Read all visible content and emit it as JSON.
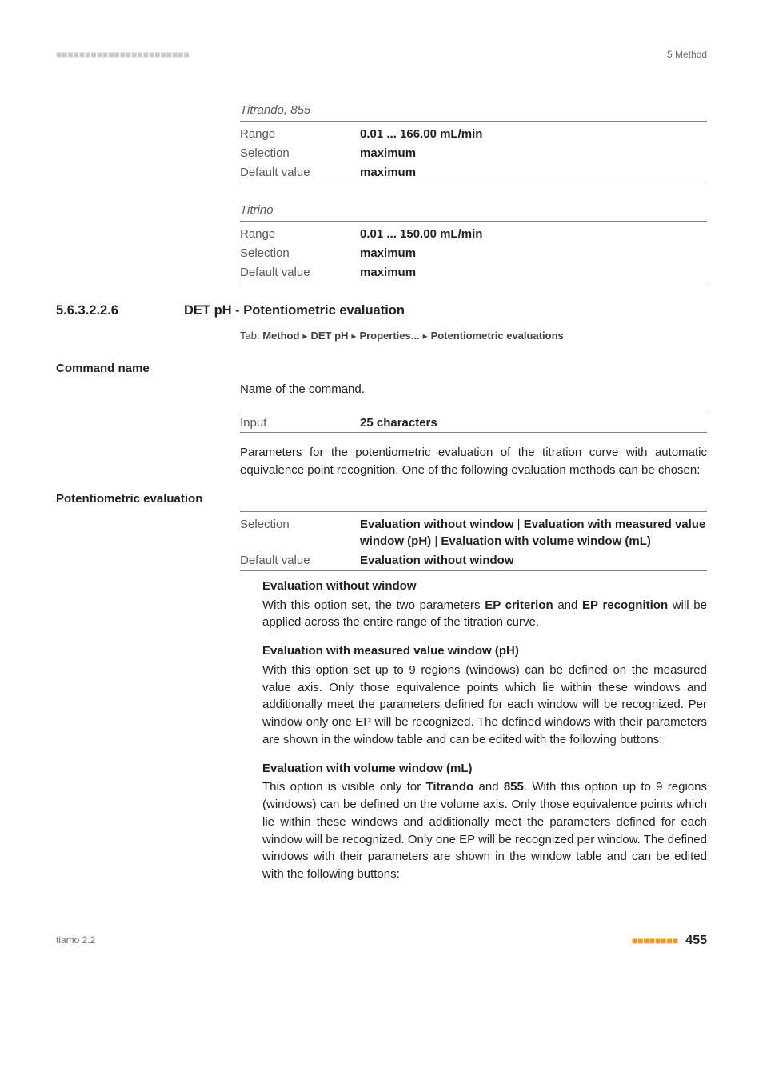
{
  "header": {
    "dots_left": "■■■■■■■■■■■■■■■■■■■■■■■",
    "right": "5 Method"
  },
  "blocks": [
    {
      "device": "Titrando, 855",
      "rows": [
        {
          "key": "Range",
          "val": "0.01 ... 166.00 mL/min",
          "bold": true
        },
        {
          "key": "Selection",
          "val": "maximum",
          "bold": true
        },
        {
          "key": "Default value",
          "val": "maximum",
          "bold": true
        }
      ]
    },
    {
      "device": "Titrino",
      "rows": [
        {
          "key": "Range",
          "val": "0.01 ... 150.00 mL/min",
          "bold": true
        },
        {
          "key": "Selection",
          "val": "maximum",
          "bold": true
        },
        {
          "key": "Default value",
          "val": "maximum",
          "bold": true
        }
      ]
    }
  ],
  "section": {
    "num": "5.6.3.2.2.6",
    "title": "DET pH - Potentiometric evaluation"
  },
  "tab": {
    "prefix": "Tab:",
    "parts": [
      "Method",
      "DET pH",
      "Properties...",
      "Potentiometric evaluations"
    ]
  },
  "command_name": {
    "label": "Command name",
    "desc": "Name of the command.",
    "rows": [
      {
        "key": "Input",
        "val": "25 characters",
        "bold": true
      }
    ],
    "after": "Parameters for the potentiometric evaluation of the titration curve with automatic equivalence point recognition. One of the following evaluation methods can be chosen:"
  },
  "pot_eval": {
    "label": "Potentiometric evaluation",
    "rows": [
      {
        "key": "Selection",
        "val_html": "<b>Evaluation without window</b> | <b>Evaluation with measured value window (pH)</b> | <b>Evaluation with volume window (mL)</b>"
      },
      {
        "key": "Default value",
        "val": "Evaluation without window",
        "bold": true
      }
    ],
    "subs": [
      {
        "head": "Evaluation without window",
        "body_html": "With this option set, the two parameters <b>EP criterion</b> and <b>EP recognition</b> will be applied across the entire range of the titration curve."
      },
      {
        "head": "Evaluation with measured value window (pH)",
        "body_html": "With this option set up to 9 regions (windows) can be defined on the measured value axis. Only those equivalence points which lie within these windows and additionally meet the parameters defined for each window will be recognized. Per window only one EP will be recognized. The defined windows with their parameters are shown in the window table and can be edited with the following buttons:"
      },
      {
        "head": "Evaluation with volume window (mL)",
        "body_html": "This option is visible only for <b>Titrando</b> and <b>855</b>. With this option up to 9 regions (windows) can be defined on the volume axis. Only those equivalence points which lie within these windows and additionally meet the parameters defined for each window will be recognized. Only one EP will be recognized per window. The defined windows with their parameters are shown in the window table and can be edited with the following buttons:"
      }
    ]
  },
  "footer": {
    "left": "tiamo 2.2",
    "dots": "■■■■■■■■",
    "page": "455"
  }
}
